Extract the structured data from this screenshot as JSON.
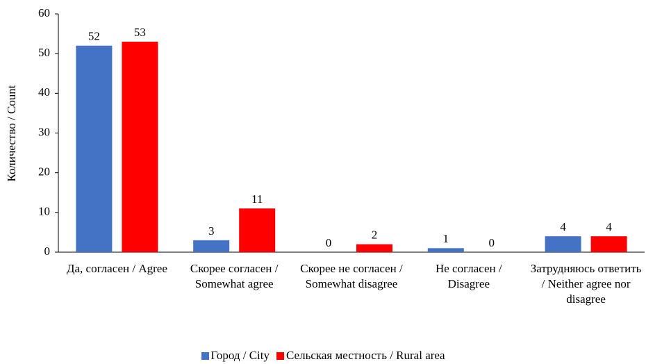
{
  "chart_data": {
    "type": "bar",
    "y_label": "Количество / Count",
    "categories": [
      "Да, согласен / Agree",
      "Скорее согласен / Somewhat agree",
      "Скорее не согласен / Somewhat disagree",
      "Не согласен / Disagree",
      "Затрудняюсь ответить / Neither agree nor disagree"
    ],
    "series": [
      {
        "name": "Город / City",
        "color": "#4472c4",
        "values": [
          52,
          3,
          0,
          1,
          4
        ]
      },
      {
        "name": "Сельская местность / Rural area",
        "color": "#ff0000",
        "values": [
          53,
          11,
          2,
          0,
          4
        ]
      }
    ],
    "ylim": [
      0,
      60
    ],
    "yticks": [
      0,
      10,
      20,
      30,
      40,
      50,
      60
    ],
    "grid": false,
    "legend": "bottom"
  }
}
